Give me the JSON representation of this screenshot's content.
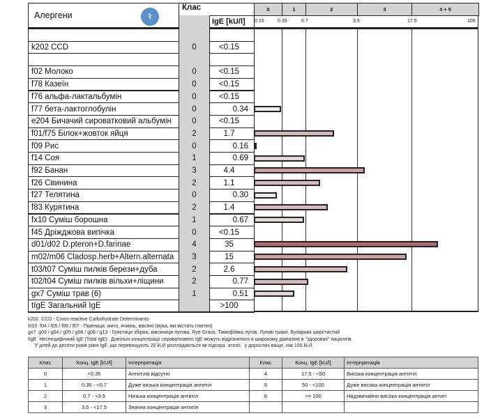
{
  "header": {
    "allergens": "Алергени",
    "class": "Клас",
    "ige": "IgE [kU/l]",
    "class_bands": [
      "0",
      "1",
      "2",
      "3",
      "4 + 5"
    ],
    "ticks": [
      "0.15",
      "0.35",
      "0.7",
      "3.5",
      "17.5",
      "100"
    ]
  },
  "colors": {
    "c0": "#ececec",
    "c1": "#e2d6d6",
    "c2": "#d6baba",
    "c3": "#cba2a2",
    "c4": "#b06a6a",
    "logo": "#5b8fc7"
  },
  "rows": [
    {
      "name": "",
      "cls": "",
      "val": "",
      "num": null
    },
    {
      "name": "k202  CCD",
      "cls": "0",
      "val": "<0.15",
      "num": null
    },
    {
      "name": "",
      "cls": "",
      "val": "",
      "num": null
    },
    {
      "name": "f02  Молоко",
      "cls": "0",
      "val": "<0.15",
      "num": null
    },
    {
      "name": "f78  Казеїн",
      "cls": "0",
      "val": "<0.15",
      "num": null
    },
    {
      "name": "f76  альфа-лактальбумін",
      "cls": "0",
      "val": "<0.15",
      "num": null
    },
    {
      "name": "f77  бета-лактоглобулін",
      "cls": "0",
      "val": "0.34",
      "num": 0.34
    },
    {
      "name": "e204  Бичачий сироватковий альбумін",
      "cls": "0",
      "val": "<0.15",
      "num": null
    },
    {
      "name": "f01/f75  Білок+жовток яйця",
      "cls": "2",
      "val": "1.7",
      "num": 1.7
    },
    {
      "name": "f09  Рис",
      "cls": "0",
      "val": "0.16",
      "num": 0.16
    },
    {
      "name": "f14  Соя",
      "cls": "1",
      "val": "0.69",
      "num": 0.69
    },
    {
      "name": "f92  Банан",
      "cls": "3",
      "val": "4.4",
      "num": 4.4
    },
    {
      "name": "f26  Свинина",
      "cls": "2",
      "val": "1.1",
      "num": 1.1
    },
    {
      "name": "f27  Телятина",
      "cls": "0",
      "val": "0.30",
      "num": 0.3
    },
    {
      "name": "f83  Курятина",
      "cls": "2",
      "val": "1.4",
      "num": 1.4
    },
    {
      "name": "fx10  Суміш борошна",
      "cls": "1",
      "val": "0.67",
      "num": 0.67
    },
    {
      "name": "f45  Дріжджова випічка",
      "cls": "0",
      "val": "<0.15",
      "num": null
    },
    {
      "name": "d01/d02  D.pteron+D.farinae",
      "cls": "4",
      "val": "35",
      "num": 35
    },
    {
      "name": "m02/m06  Cladosp.herb+Altern.alternata",
      "cls": "3",
      "val": "15",
      "num": 15
    },
    {
      "name": "t03/t07  Суміш пилків берези+дуба",
      "cls": "2",
      "val": "2.6",
      "num": 2.6
    },
    {
      "name": "t02/t04  Суміш пилків вільхи+ліщини",
      "cls": "2",
      "val": "0.77",
      "num": 0.77
    },
    {
      "name": "gx7  Суміш трав (6)",
      "cls": "1",
      "val": "0.51",
      "num": 0.51
    },
    {
      "name": "tIgE  Загальний IgE",
      "cls": "",
      "val": ">100",
      "num": null
    }
  ],
  "notes": [
    "k202  CCD - Cross-reactive Carbohydrate Determinants",
    "fx10  f04 / f05 / f06 / f07 - Пшениця, жито, ячмінь, вівсяні (мука, які містять глютен)",
    "gx7  g03 / g04 / g05 / g06 / g08 / g13 - Грястиця збірна, вівсяниця лугова, Rye Grass, Тимофіївка лугов, Лугові трави, Бухарник шерстистий",
    "tIgE  Неспецифічний IgE (Total IgE):  Довільні концентрації сироваткового IgE можуть відрізнятися в широкому діапазоні в \"здорових\" пацієнтів.",
    "     У дітей до десяти років рівні IgE ,що перевищують 20 kU/l розглядаються як підозра  атопії,  у дорослих вище, ніж 100 kU/l."
  ],
  "legend": {
    "headers": [
      "Клас",
      "Конц. IgE [kU/l]",
      "Інтерпретація",
      "Клас",
      "Конц. IgE [kU/l]",
      "Інтерпретація"
    ],
    "rows": [
      [
        "0",
        "<0.35",
        "Антитіла відсутні",
        "4",
        "17.5 - <50",
        "Висока концентрація антитіл"
      ],
      [
        "1",
        "0.35 - <0.7",
        "Дуже низька концентрація антитіл",
        "5",
        "50 - <100",
        "Дуже висока концентрація антитіл"
      ],
      [
        "2",
        "0.7 - <3.5",
        "Низька концентрація антитіл",
        "6",
        ">= 100",
        "Надзвичайно висока концентрація антиті"
      ],
      [
        "3",
        "3.5 - <17.5",
        "Значна концентрація антитіл",
        "",
        "",
        " "
      ]
    ]
  }
}
